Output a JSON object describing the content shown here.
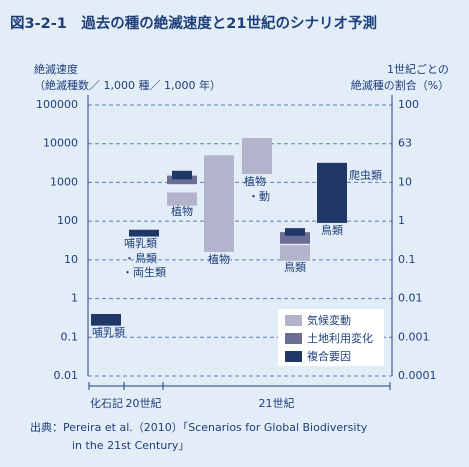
{
  "chart_data": {
    "type": "range-bar",
    "title": "図3-2-1　過去の種の絶滅速度と21世紀のシナリオ予測",
    "y_label": [
      "絶滅速度",
      "（絶滅種数／ 1,000 種／ 1,000 年）"
    ],
    "y2_label": [
      "1世紀ごとの",
      "絶滅種の割合（%）"
    ],
    "log_scale": true,
    "grid": true,
    "ylim": [
      0.01,
      100000
    ],
    "yticks": [
      100000,
      10000,
      1000,
      100,
      10,
      1,
      0.1,
      0.01
    ],
    "y2ticks": [
      100,
      63,
      10,
      1,
      0.1,
      0.01,
      0.001,
      0.0001
    ],
    "categories": [
      null,
      null,
      null,
      null,
      null,
      null,
      null
    ],
    "slot_labels": [
      [
        "哺乳類"
      ],
      [
        "哺乳類",
        "・鳥類",
        "・両生類"
      ],
      [
        "植物"
      ],
      [
        "植物"
      ],
      [
        "植物",
        "・動"
      ],
      [
        "鳥類"
      ],
      [
        "爬虫類",
        "鳥類"
      ]
    ],
    "eras": [
      "化石記",
      "20世紀",
      "21世紀"
    ],
    "series": [
      {
        "color": "#1f3868",
        "low": [
          0.2,
          40,
          null,
          null,
          null,
          null,
          null
        ],
        "high": [
          0.4,
          60,
          null,
          null,
          null,
          null,
          null
        ]
      },
      {
        "name": "気候変動",
        "color": "#b3b3cc",
        "low": [
          null,
          null,
          250,
          16,
          1650,
          9.4,
          null
        ],
        "high": [
          null,
          null,
          550,
          5000,
          14000,
          24,
          null
        ]
      },
      {
        "name": "土地利用変化",
        "color": "#6d6e95",
        "low": [
          null,
          null,
          900,
          null,
          null,
          26,
          null
        ],
        "high": [
          null,
          null,
          1500,
          null,
          null,
          52,
          null
        ]
      },
      {
        "name": "複合要因",
        "color": "#1f3868",
        "low": [
          null,
          null,
          1200,
          null,
          null,
          42,
          90
        ],
        "high": [
          null,
          null,
          2000,
          null,
          null,
          66,
          3200
        ]
      }
    ],
    "legend": "lower-right",
    "source": [
      "出典：Pereira et al.（2010）「Scenarios for Global Biodiversity",
      "in the 21st Century」"
    ]
  }
}
